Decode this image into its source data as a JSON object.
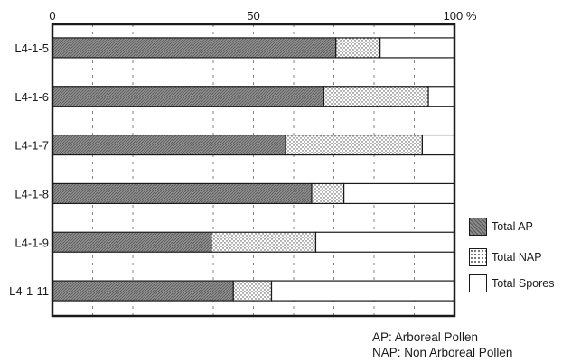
{
  "chart_data": {
    "type": "bar",
    "orientation": "horizontal",
    "stacked": true,
    "categories": [
      "L4-1-5",
      "L4-1-6",
      "L4-1-7",
      "L4-1-8",
      "L4-1-9",
      "L4-1-11"
    ],
    "series": [
      {
        "name": "Total AP",
        "values": [
          70.5,
          67.5,
          58,
          64.5,
          39.5,
          45
        ]
      },
      {
        "name": "Total NAP",
        "values": [
          11,
          26,
          34,
          8,
          26,
          9.5
        ]
      },
      {
        "name": "Total Spores",
        "values": [
          18.5,
          6.5,
          8,
          27.5,
          34.5,
          45.5
        ]
      }
    ],
    "xlim": [
      0,
      100
    ],
    "x_ticks": [
      "0",
      "50",
      "100 %"
    ],
    "title": "",
    "xlabel": "",
    "ylabel": "",
    "grid": "vertical dashed every 10%",
    "legend_position": "right",
    "colors": {
      "ap": "#8a8a8a",
      "nap": "#ffffff",
      "spores": "#ffffff",
      "axis": "#1a1a1a"
    }
  },
  "legend": {
    "items": [
      {
        "label": "Total AP",
        "pattern": "hatched-gray"
      },
      {
        "label": "Total NAP",
        "pattern": "dotted"
      },
      {
        "label": "Total Spores",
        "pattern": "white"
      }
    ]
  },
  "footnotes": [
    "AP: Arboreal Pollen",
    "NAP: Non Arboreal Pollen"
  ]
}
